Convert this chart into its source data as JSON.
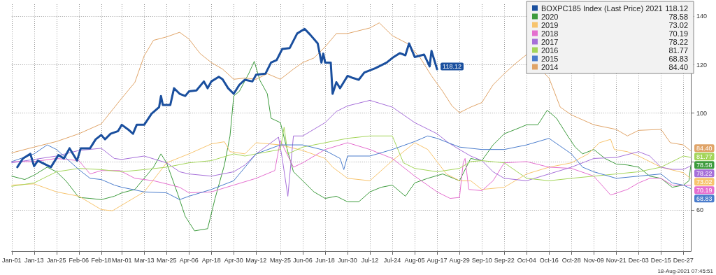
{
  "chart_data": {
    "type": "line",
    "legend": "top right",
    "grid": true,
    "xlim": [
      "--01-01",
      "--12-31"
    ],
    "xticks": [
      {
        "value": "--01-01",
        "label": "Jan-01"
      },
      {
        "value": "--01-13",
        "label": "Jan-13"
      },
      {
        "value": "--01-25",
        "label": "Jan-25"
      },
      {
        "value": "--02-06",
        "label": "Feb-06"
      },
      {
        "value": "--02-18",
        "label": "Feb-18"
      },
      {
        "value": "--03-01",
        "label": "Mar-01"
      },
      {
        "value": "--03-13",
        "label": "Mar-13"
      },
      {
        "value": "--03-25",
        "label": "Mar-25"
      },
      {
        "value": "--04-06",
        "label": "Apr-06"
      },
      {
        "value": "--04-18",
        "label": "Apr-18"
      },
      {
        "value": "--04-30",
        "label": "Apr-30"
      },
      {
        "value": "--05-12",
        "label": "May-12"
      },
      {
        "value": "--05-25",
        "label": "May-25"
      },
      {
        "value": "--06-06",
        "label": "Jun-06"
      },
      {
        "value": "--06-18",
        "label": "Jun-18"
      },
      {
        "value": "--06-30",
        "label": "Jun-30"
      },
      {
        "value": "--07-12",
        "label": "Jul-12"
      },
      {
        "value": "--07-24",
        "label": "Jul-24"
      },
      {
        "value": "--08-05",
        "label": "Aug-05"
      },
      {
        "value": "--08-17",
        "label": "Aug-17"
      },
      {
        "value": "--08-29",
        "label": "Aug-29"
      },
      {
        "value": "--09-10",
        "label": "Sep-10"
      },
      {
        "value": "--09-22",
        "label": "Sep-22"
      },
      {
        "value": "--10-04",
        "label": "Oct-04"
      },
      {
        "value": "--10-16",
        "label": "Oct-16"
      },
      {
        "value": "--10-28",
        "label": "Oct-28"
      },
      {
        "value": "--11-09",
        "label": "Nov-09"
      },
      {
        "value": "--11-21",
        "label": "Nov-21"
      },
      {
        "value": "--12-03",
        "label": "Dec-03"
      },
      {
        "value": "--12-15",
        "label": "Dec-15"
      },
      {
        "value": "--12-27",
        "label": "Dec-27"
      }
    ],
    "ylim": [
      43,
      145
    ],
    "yticks": [
      60,
      {
        "value": 80,
        "label": null
      },
      100,
      120,
      140
    ],
    "annotations": [
      "18-Aug-2021 07:45:51"
    ],
    "series": [
      {
        "name": "BOXPC185 Index (Last Price) 2021",
        "color": "#1a4f9e",
        "x": [
          "--01-04",
          "--01-07",
          "--01-11",
          "--01-13",
          "--01-15",
          "--01-22",
          "--01-26",
          "--01-29",
          "--02-01",
          "--02-05",
          "--02-07",
          "--02-12",
          "--02-15",
          "--02-18",
          "--02-20",
          "--02-23",
          "--02-27",
          "--03-01",
          "--03-05",
          "--03-07",
          "--03-09",
          "--03-13",
          "--03-17",
          "--03-21",
          "--03-22",
          "--03-23",
          "--03-27",
          "--03-29",
          "--04-01",
          "--04-04",
          "--04-06",
          "--04-10",
          "--04-14",
          "--04-16",
          "--04-18",
          "--04-22",
          "--04-24",
          "--04-27",
          "--04-30",
          "--05-03",
          "--05-06",
          "--05-10",
          "--05-12",
          "--05-17",
          "--05-20",
          "--05-23",
          "--05-26",
          "--05-30",
          "--06-03",
          "--06-07",
          "--06-10",
          "--06-14",
          "--06-16",
          "--06-17",
          "--06-18",
          "--06-21",
          "--06-22",
          "--06-24",
          "--06-26",
          "--06-30",
          "--07-03",
          "--07-06",
          "--07-09",
          "--07-15",
          "--07-21",
          "--07-24",
          "--07-28",
          "--07-31",
          "--08-02",
          "--08-05",
          "--08-10",
          "--08-13",
          "--08-14",
          "--08-17"
        ],
        "values": [
          77.7,
          81.3,
          83.2,
          78.1,
          80.4,
          77.7,
          82.7,
          81.3,
          85.5,
          80.4,
          85.5,
          85.5,
          89.2,
          91.0,
          89.2,
          91.5,
          92.6,
          95.2,
          92.9,
          91.5,
          95.2,
          95.2,
          99.8,
          102.5,
          107.1,
          103.4,
          103.4,
          110.3,
          108.0,
          107.1,
          109.0,
          109.4,
          113.1,
          110.3,
          113.1,
          115.0,
          114.0,
          110.3,
          108.0,
          111.7,
          113.8,
          113.1,
          115.9,
          116.3,
          120.9,
          121.9,
          126.5,
          126.9,
          132.9,
          134.8,
          132.4,
          128.8,
          120.9,
          124.6,
          120.9,
          120.9,
          108.0,
          112.8,
          110.3,
          115.4,
          114.5,
          113.8,
          116.8,
          118.6,
          120.9,
          122.8,
          124.8,
          123.9,
          128.8,
          123.2,
          124.2,
          119.3,
          125.7,
          118.12
        ],
        "value_labels": [
          null,
          null,
          null,
          null,
          null,
          null,
          null,
          null,
          null,
          null,
          null,
          null,
          null,
          null,
          null,
          null,
          null,
          null,
          null,
          null,
          null,
          null,
          null,
          null,
          null,
          null,
          null,
          null,
          null,
          null,
          null,
          null,
          null,
          null,
          null,
          null,
          null,
          null,
          null,
          null,
          null,
          null,
          null,
          null,
          null,
          null,
          null,
          null,
          null,
          null,
          null,
          null,
          null,
          null,
          null,
          null,
          null,
          null,
          null,
          null,
          null,
          null,
          null,
          null,
          null,
          null,
          null,
          null,
          null,
          null,
          null,
          null,
          null,
          "118.12"
        ]
      },
      {
        "name": "2020",
        "color": "#3d9b3d",
        "x": [
          "--01-01",
          "--01-08",
          "--01-13",
          "--01-20",
          "--01-25",
          "--01-30",
          "--02-06",
          "--02-12",
          "--02-18",
          "--02-25",
          "--03-01",
          "--03-08",
          "--03-13",
          "--03-18",
          "--03-22",
          "--03-25",
          "--03-31",
          "--04-04",
          "--04-09",
          "--04-16",
          "--04-20",
          "--04-25",
          "--04-28",
          "--04-30",
          "--05-03",
          "--05-08",
          "--05-11",
          "--05-14",
          "--05-18",
          "--05-20",
          "--05-25",
          "--05-28",
          "--06-01",
          "--06-06",
          "--06-12",
          "--06-18",
          "--06-24",
          "--06-30",
          "--07-06",
          "--07-12",
          "--07-18",
          "--07-24",
          "--07-31",
          "--08-05",
          "--08-12",
          "--08-20",
          "--08-29",
          "--09-04",
          "--09-10",
          "--09-16",
          "--09-22",
          "--09-28",
          "--10-04",
          "--10-10",
          "--10-15",
          "--10-20",
          "--10-26",
          "--10-30",
          "--11-03",
          "--11-09",
          "--11-15",
          "--11-21",
          "--11-27",
          "--12-03",
          "--12-09",
          "--12-15",
          "--12-21",
          "--12-27",
          "--12-30",
          "--12-31"
        ],
        "values": [
          74,
          72.6,
          74.4,
          77.7,
          75.8,
          72.1,
          65.2,
          64.8,
          64.3,
          65.7,
          67.1,
          68.5,
          73.1,
          77.7,
          83.2,
          79.5,
          66.6,
          57.4,
          51.4,
          52.3,
          64.8,
          78.6,
          90.6,
          107.1,
          109,
          116.3,
          121.4,
          113.6,
          108,
          97.9,
          96.1,
          86.9,
          75.8,
          72.1,
          67.5,
          64.8,
          65.7,
          63.4,
          63.4,
          67.5,
          69.4,
          70.3,
          65.7,
          71.2,
          73.1,
          74.9,
          72.1,
          81.3,
          80.4,
          86.9,
          91.5,
          93.3,
          95.2,
          95.2,
          101.2,
          97.9,
          90.6,
          86,
          83.2,
          85,
          81.3,
          79,
          78.6,
          77.7,
          74,
          73.1,
          69.4,
          70.3,
          72.1,
          78.58
        ],
        "value_labels": [
          null,
          null,
          null,
          null,
          null,
          null,
          null,
          null,
          null,
          null,
          null,
          null,
          null,
          null,
          null,
          null,
          null,
          null,
          null,
          null,
          null,
          null,
          null,
          null,
          null,
          null,
          null,
          null,
          null,
          null,
          null,
          null,
          null,
          null,
          null,
          null,
          null,
          null,
          null,
          null,
          null,
          null,
          null,
          null,
          null,
          null,
          null,
          null,
          null,
          null,
          null,
          null,
          null,
          null,
          null,
          null,
          null,
          null,
          null,
          null,
          null,
          null,
          null,
          null,
          null,
          null,
          null,
          null,
          null,
          "78.58"
        ]
      },
      {
        "name": "2019",
        "color": "#f7c46e",
        "x": [
          "--01-01",
          "--01-13",
          "--01-25",
          "--02-06",
          "--02-18",
          "--02-24",
          "--03-01",
          "--03-13",
          "--03-25",
          "--04-06",
          "--04-18",
          "--04-25",
          "--04-28",
          "--05-06",
          "--05-12",
          "--05-25",
          "--06-06",
          "--06-18",
          "--06-22",
          "--06-30",
          "--07-12",
          "--07-24",
          "--08-05",
          "--08-12",
          "--08-22",
          "--08-29",
          "--09-04",
          "--09-10",
          "--09-22",
          "--10-04",
          "--10-16",
          "--10-28",
          "--11-06",
          "--11-12",
          "--11-18",
          "--11-20",
          "--11-27",
          "--12-03",
          "--12-15",
          "--12-27",
          "--12-31"
        ],
        "values": [
          70.3,
          70.8,
          67.5,
          65.7,
          60.2,
          59.7,
          62,
          67.5,
          79.5,
          83.2,
          87.3,
          88.2,
          84.1,
          83.2,
          87.8,
          86.9,
          84.6,
          81.3,
          77.7,
          73.1,
          72.1,
          80.4,
          87.8,
          85,
          74.9,
          72.1,
          72.1,
          68.5,
          69.4,
          74.9,
          77.7,
          79.5,
          83.2,
          87.8,
          89.2,
          85,
          84.1,
          82.3,
          77.7,
          75.4,
          73.02
        ],
        "value_labels": [
          null,
          null,
          null,
          null,
          null,
          null,
          null,
          null,
          null,
          null,
          null,
          null,
          null,
          null,
          null,
          null,
          null,
          null,
          null,
          null,
          null,
          null,
          null,
          null,
          null,
          null,
          null,
          null,
          null,
          null,
          null,
          null,
          null,
          null,
          null,
          null,
          null,
          null,
          null,
          null,
          "73.02"
        ]
      },
      {
        "name": "2018",
        "color": "#e46fcf",
        "x": [
          "--01-01",
          "--01-13",
          "--01-25",
          "--02-06",
          "--02-12",
          "--02-18",
          "--02-28",
          "--03-08",
          "--03-18",
          "--03-25",
          "--04-01",
          "--04-06",
          "--04-18",
          "--04-30",
          "--05-12",
          "--05-22",
          "--05-25",
          "--06-01",
          "--06-06",
          "--06-18",
          "--06-30",
          "--07-12",
          "--07-24",
          "--08-05",
          "--08-17",
          "--08-24",
          "--08-29",
          "--08-31",
          "--09-01",
          "--09-03",
          "--09-10",
          "--09-16",
          "--09-22",
          "--10-04",
          "--10-16",
          "--10-28",
          "--11-09",
          "--11-18",
          "--11-27",
          "--12-03",
          "--12-09",
          "--12-15",
          "--12-21",
          "--12-31"
        ],
        "values": [
          80,
          80,
          81.3,
          80.4,
          74.9,
          76.3,
          76.3,
          73.1,
          72.1,
          70.8,
          69.4,
          67.1,
          67.5,
          70.3,
          73.1,
          76.3,
          88.7,
          77.7,
          79.5,
          85,
          87.8,
          85,
          81.3,
          74,
          67.5,
          64.8,
          65.2,
          79.5,
          81.3,
          68.5,
          68,
          72.1,
          79.5,
          80,
          77.7,
          77.2,
          74,
          66.2,
          68.5,
          71.2,
          73.1,
          73.1,
          70.3,
          70.19
        ],
        "value_labels": [
          null,
          null,
          null,
          null,
          null,
          null,
          null,
          null,
          null,
          null,
          null,
          null,
          null,
          null,
          null,
          null,
          null,
          null,
          null,
          null,
          null,
          null,
          null,
          null,
          null,
          null,
          null,
          null,
          null,
          null,
          null,
          null,
          null,
          null,
          null,
          null,
          null,
          null,
          null,
          null,
          null,
          null,
          null,
          "70.19"
        ]
      },
      {
        "name": "2017",
        "color": "#a66fd9",
        "x": [
          "--01-01",
          "--01-13",
          "--01-25",
          "--02-06",
          "--02-18",
          "--02-25",
          "--03-01",
          "--03-13",
          "--03-25",
          "--04-01",
          "--04-06",
          "--04-18",
          "--04-30",
          "--05-06",
          "--05-12",
          "--05-20",
          "--05-24",
          "--05-26",
          "--05-29",
          "--06-01",
          "--06-06",
          "--06-18",
          "--06-24",
          "--06-30",
          "--07-12",
          "--07-24",
          "--08-05",
          "--08-17",
          "--08-23",
          "--08-29",
          "--09-04",
          "--09-10",
          "--09-16",
          "--09-22",
          "--10-04",
          "--10-16",
          "--10-28",
          "--11-09",
          "--11-21",
          "--12-03",
          "--12-09",
          "--12-15",
          "--12-21",
          "--12-27",
          "--12-31"
        ],
        "values": [
          79.5,
          80.9,
          82.3,
          84.6,
          85.5,
          81.3,
          80.9,
          82.3,
          79.5,
          75.8,
          74.9,
          74,
          75.8,
          78.6,
          83.2,
          87.8,
          90.1,
          81.3,
          65.7,
          90.6,
          90.6,
          96.1,
          100.7,
          103,
          105.3,
          102.5,
          96.1,
          91.5,
          87.8,
          85,
          82.3,
          80.4,
          75.8,
          73.1,
          72.1,
          74.9,
          77.7,
          81.3,
          81.7,
          84.1,
          82.3,
          77.7,
          76.8,
          76.8,
          78.22
        ],
        "value_labels": [
          null,
          null,
          null,
          null,
          null,
          null,
          null,
          null,
          null,
          null,
          null,
          null,
          null,
          null,
          null,
          null,
          null,
          null,
          null,
          null,
          null,
          null,
          null,
          null,
          null,
          null,
          null,
          null,
          null,
          null,
          null,
          null,
          null,
          null,
          null,
          null,
          null,
          null,
          null,
          null,
          null,
          null,
          null,
          null,
          "78.22"
        ]
      },
      {
        "name": "2016",
        "color": "#a4d55a",
        "x": [
          "--01-01",
          "--01-13",
          "--01-25",
          "--02-06",
          "--02-18",
          "--03-01",
          "--03-13",
          "--03-25",
          "--04-06",
          "--04-18",
          "--04-30",
          "--05-06",
          "--05-12",
          "--05-25",
          "--05-27",
          "--05-29",
          "--06-06",
          "--06-18",
          "--06-30",
          "--07-12",
          "--07-24",
          "--07-30",
          "--08-05",
          "--08-17",
          "--08-29",
          "--09-04",
          "--09-10",
          "--09-22",
          "--10-04",
          "--10-16",
          "--10-28",
          "--11-09",
          "--11-21",
          "--12-03",
          "--12-15",
          "--12-27",
          "--12-31"
        ],
        "values": [
          69.8,
          71.2,
          75.8,
          77.2,
          76.7,
          75.8,
          76.7,
          77.7,
          79.5,
          80.4,
          83.2,
          82.3,
          83.2,
          85,
          94.2,
          83.2,
          86,
          87.8,
          89.6,
          90.6,
          90.6,
          79.5,
          77.2,
          75.8,
          77.2,
          80,
          80.4,
          79.5,
          73.1,
          72.1,
          73.1,
          74,
          74.9,
          75.8,
          77.7,
          82.3,
          81.77
        ],
        "value_labels": [
          null,
          null,
          null,
          null,
          null,
          null,
          null,
          null,
          null,
          null,
          null,
          null,
          null,
          null,
          null,
          null,
          null,
          null,
          null,
          null,
          null,
          null,
          null,
          null,
          null,
          null,
          null,
          null,
          null,
          null,
          null,
          null,
          null,
          null,
          null,
          null,
          "81.77"
        ]
      },
      {
        "name": "2015",
        "color": "#4a7ccc",
        "x": [
          "--01-01",
          "--01-13",
          "--01-20",
          "--01-25",
          "--02-06",
          "--02-12",
          "--02-18",
          "--02-25",
          "--03-01",
          "--03-13",
          "--03-25",
          "--04-01",
          "--04-06",
          "--04-18",
          "--04-30",
          "--05-12",
          "--05-25",
          "--06-06",
          "--06-18",
          "--06-26",
          "--06-28",
          "--06-30",
          "--07-12",
          "--07-24",
          "--08-05",
          "--08-12",
          "--08-17",
          "--08-29",
          "--09-10",
          "--09-22",
          "--10-04",
          "--10-16",
          "--10-28",
          "--11-03",
          "--11-09",
          "--11-21",
          "--12-03",
          "--12-15",
          "--12-21",
          "--12-27",
          "--12-31"
        ],
        "values": [
          80,
          83.2,
          86.9,
          85,
          76.7,
          73.1,
          72.6,
          70.3,
          69.4,
          67.5,
          67.1,
          64.3,
          65.7,
          68.5,
          72.1,
          83.2,
          86.9,
          86.9,
          84.6,
          81.3,
          76.7,
          82.3,
          82.3,
          85,
          88.3,
          90.6,
          89.6,
          86,
          85,
          85,
          86.9,
          89.6,
          83.2,
          77.7,
          75.8,
          73.1,
          74,
          74.9,
          71.2,
          70.3,
          68.83
        ],
        "value_labels": [
          null,
          null,
          null,
          null,
          null,
          null,
          null,
          null,
          null,
          null,
          null,
          null,
          null,
          null,
          null,
          null,
          null,
          null,
          null,
          null,
          null,
          null,
          null,
          null,
          null,
          null,
          null,
          null,
          null,
          null,
          null,
          null,
          null,
          null,
          null,
          null,
          null,
          null,
          null,
          null,
          "68.83"
        ]
      },
      {
        "name": "2014",
        "color": "#e0a468",
        "x": [
          "--01-01",
          "--01-13",
          "--01-25",
          "--02-06",
          "--02-18",
          "--03-01",
          "--03-08",
          "--03-13",
          "--03-18",
          "--03-25",
          "--04-01",
          "--04-06",
          "--04-12",
          "--04-18",
          "--04-24",
          "--04-30",
          "--05-06",
          "--05-12",
          "--05-18",
          "--05-25",
          "--06-01",
          "--06-06",
          "--06-12",
          "--06-18",
          "--06-24",
          "--06-30",
          "--07-12",
          "--07-17",
          "--07-24",
          "--08-01",
          "--08-08",
          "--08-14",
          "--08-20",
          "--08-25",
          "--08-29",
          "--09-04",
          "--09-10",
          "--09-16",
          "--09-22",
          "--09-28",
          "--10-04",
          "--10-16",
          "--10-22",
          "--10-28",
          "--11-09",
          "--11-21",
          "--11-27",
          "--12-03",
          "--12-15",
          "--12-20",
          "--12-27",
          "--12-31"
        ],
        "values": [
          83.6,
          86,
          88.3,
          91.5,
          95.6,
          106.2,
          112.7,
          123.7,
          130.1,
          131.5,
          133.4,
          130.6,
          124.6,
          120.9,
          118.2,
          114.0,
          114.5,
          114.0,
          116.3,
          114.0,
          118.2,
          120.9,
          122.8,
          127.4,
          132.9,
          132.9,
          135.2,
          137.3,
          132.0,
          128.8,
          122.8,
          115.4,
          109.0,
          103.0,
          100.2,
          102.5,
          104.4,
          111.7,
          116.3,
          120.5,
          124.2,
          114.5,
          102.5,
          99.3,
          95.2,
          93.3,
          90.6,
          92.9,
          93.3,
          87.8,
          86.9,
          84.4
        ],
        "value_labels": [
          null,
          null,
          null,
          null,
          null,
          null,
          null,
          null,
          null,
          null,
          null,
          null,
          null,
          null,
          null,
          null,
          null,
          null,
          null,
          null,
          null,
          null,
          null,
          null,
          null,
          null,
          null,
          null,
          null,
          null,
          null,
          null,
          null,
          null,
          null,
          null,
          null,
          null,
          null,
          null,
          null,
          null,
          null,
          null,
          null,
          null,
          null,
          null,
          null,
          null,
          null,
          "84.40"
        ]
      }
    ]
  }
}
